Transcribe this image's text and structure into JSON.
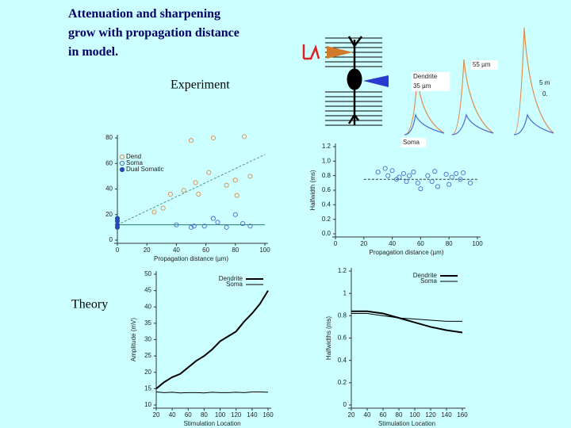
{
  "slide": {
    "title_lines": [
      "Attenuation and sharpening",
      "grow with propagation distance",
      "in model."
    ],
    "experiment_label": "Experiment",
    "theory_label": "Theory",
    "traces": {
      "dist_far": "55 µm",
      "dendrite": "Dendrite",
      "dist_near": "35 µm",
      "soma": "Soma",
      "scale_v": "5 m",
      "scale_t": "0."
    }
  },
  "chart_data": [
    {
      "type": "scatter",
      "xlabel": "Propagation distance (µm)",
      "xlim": [
        0,
        100
      ],
      "xticks": [
        0,
        20,
        40,
        60,
        80,
        100
      ],
      "ylim": [
        0,
        80
      ],
      "yticks": [
        0,
        20,
        40,
        60,
        80
      ],
      "legend": "upper left",
      "series": [
        {
          "name": "Dend",
          "color": "#e08a4a",
          "filled": false,
          "x": [
            50,
            65,
            86,
            62,
            80,
            90,
            36,
            45,
            53,
            55,
            74,
            81,
            25,
            31
          ],
          "values": [
            78,
            80,
            81,
            53,
            47,
            50,
            36,
            39,
            45,
            36,
            43,
            35,
            22,
            25
          ]
        },
        {
          "name": "Soma",
          "color": "#4a6ad0",
          "filled": false,
          "x": [
            50,
            52,
            59,
            68,
            74,
            80,
            90,
            40,
            85,
            65
          ],
          "values": [
            10,
            11,
            11,
            14,
            10,
            20,
            11,
            12,
            13,
            17
          ]
        },
        {
          "name": "Dual Somatic",
          "color": "#2a4ab0",
          "filled": true,
          "x": [
            0,
            0,
            0,
            0
          ],
          "values": [
            15,
            12,
            10,
            17
          ]
        }
      ],
      "trend_lines": [
        {
          "color": "#4a9a8a",
          "dash": true,
          "x": [
            0,
            100
          ],
          "y": [
            12,
            67
          ]
        },
        {
          "color": "#2a7a6a",
          "dash": false,
          "x": [
            0,
            100
          ],
          "y": [
            12,
            12
          ]
        }
      ]
    },
    {
      "type": "scatter",
      "xlabel": "Propagation distance (µm)",
      "ylabel": "Halfwidth (ms)",
      "xlim": [
        0,
        100
      ],
      "xticks": [
        0,
        20,
        40,
        60,
        80,
        100
      ],
      "ylim": [
        0,
        1.2
      ],
      "yticks": [
        {
          "value": 0,
          "label": "0.0"
        },
        0.2,
        0.4,
        0.6,
        0.8,
        {
          "value": 1,
          "label": "1.0"
        },
        1.2
      ],
      "series": [
        {
          "color": "#4a6ad0",
          "filled": false,
          "x": [
            30,
            35,
            37,
            40,
            43,
            45,
            48,
            50,
            52,
            55,
            58,
            60,
            65,
            68,
            70,
            72,
            78,
            80,
            82,
            85,
            88,
            90,
            95
          ],
          "values": [
            0.85,
            0.9,
            0.8,
            0.87,
            0.75,
            0.78,
            0.83,
            0.72,
            0.8,
            0.85,
            0.7,
            0.62,
            0.8,
            0.72,
            0.86,
            0.65,
            0.82,
            0.68,
            0.78,
            0.83,
            0.75,
            0.84,
            0.7
          ]
        }
      ],
      "trend_lines": [
        {
          "color": "#333",
          "dash": true,
          "x": [
            20,
            100
          ],
          "y": [
            0.75,
            0.75
          ]
        }
      ]
    },
    {
      "type": "line",
      "xlabel": "Stimulation Location",
      "ylabel": "Amplitude (mV)",
      "xlim": [
        20,
        160
      ],
      "xticks": [
        20,
        40,
        60,
        80,
        100,
        120,
        140,
        160
      ],
      "ylim": [
        10,
        50
      ],
      "yticks": [
        10,
        15,
        20,
        25,
        30,
        35,
        40,
        45,
        50
      ],
      "legend": "upper right",
      "x": [
        20,
        30,
        40,
        50,
        60,
        70,
        80,
        90,
        100,
        110,
        120,
        130,
        140,
        150,
        160
      ],
      "series": [
        {
          "name": "Dendrite",
          "color": "#000",
          "line_width": 2,
          "values": [
            15,
            17,
            18.5,
            19.5,
            21.5,
            23.5,
            25,
            27,
            29.5,
            31,
            32.5,
            35.5,
            38,
            41,
            45
          ]
        },
        {
          "name": "Soma",
          "color": "#000",
          "line_width": 1,
          "values": [
            14,
            13.8,
            13.9,
            13.7,
            13.8,
            13.8,
            13.7,
            13.9,
            13.8,
            13.8,
            13.9,
            13.8,
            14,
            14,
            13.9
          ]
        }
      ]
    },
    {
      "type": "line",
      "xlabel": "Stimulation Location",
      "ylabel": "Halfwidths (ms)",
      "xlim": [
        20,
        160
      ],
      "xticks": [
        20,
        40,
        60,
        80,
        100,
        120,
        140,
        160
      ],
      "ylim": [
        0,
        1.2
      ],
      "yticks": [
        0,
        0.2,
        0.4,
        0.6,
        0.8,
        1,
        1.2
      ],
      "legend": "upper right",
      "x": [
        20,
        40,
        60,
        80,
        100,
        120,
        140,
        160
      ],
      "series": [
        {
          "name": "Dendrite",
          "color": "#000",
          "line_width": 2,
          "values": [
            0.84,
            0.84,
            0.82,
            0.78,
            0.74,
            0.7,
            0.67,
            0.65
          ]
        },
        {
          "name": "Soma",
          "color": "#000",
          "line_width": 1,
          "values": [
            0.82,
            0.82,
            0.8,
            0.78,
            0.77,
            0.76,
            0.75,
            0.75
          ]
        }
      ]
    }
  ]
}
